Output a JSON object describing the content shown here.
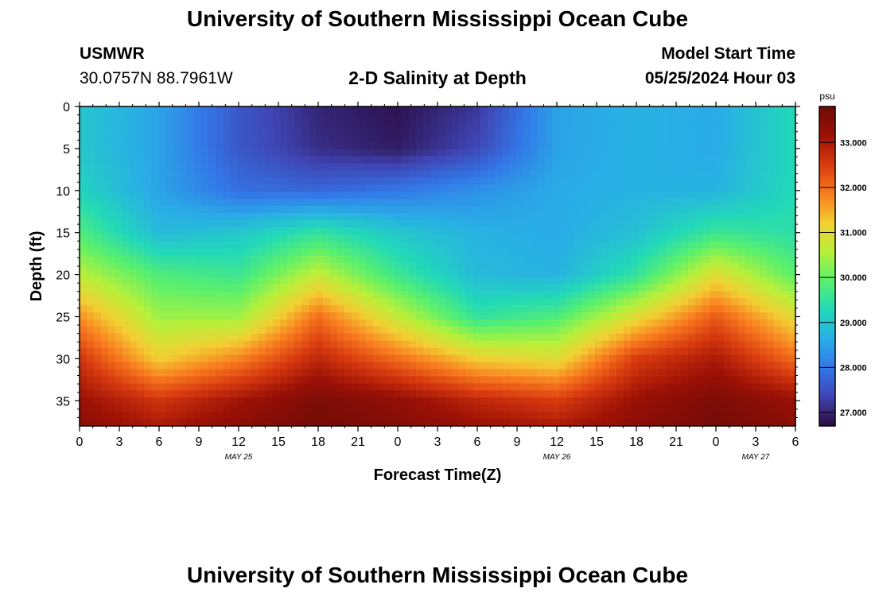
{
  "header": {
    "main_title": "University of Southern Mississippi Ocean Cube",
    "station": "USMWR",
    "coords": "30.0757N  88.7961W",
    "chart_title": "2-D Salinity at Depth",
    "model_start_label": "Model Start Time",
    "model_start_value": "05/25/2024 Hour 03",
    "footer_title": "University of Southern Mississippi Ocean Cube"
  },
  "chart_data": {
    "type": "heatmap",
    "title": "2-D Salinity at Depth",
    "xlabel": "Forecast Time(Z)",
    "ylabel": "Depth (ft)",
    "x_ticks": [
      "0",
      "3",
      "6",
      "9",
      "12",
      "15",
      "18",
      "21",
      "0",
      "3",
      "6",
      "9",
      "12",
      "15",
      "18",
      "21",
      "0",
      "3",
      "6"
    ],
    "date_labels": [
      {
        "label": "MAY 25",
        "at_tick": 4
      },
      {
        "label": "MAY 26",
        "at_tick": 12
      },
      {
        "label": "MAY 27",
        "at_tick": 17
      }
    ],
    "y_ticks": [
      0,
      5,
      10,
      15,
      20,
      25,
      30,
      35
    ],
    "ylim": [
      0,
      38
    ],
    "depth_inverted": true,
    "colorbar": {
      "unit": "psu",
      "min": 26.7,
      "max": 33.8,
      "tick_values": [
        27,
        28,
        29,
        30,
        31,
        32,
        33
      ],
      "tick_labels": [
        "27.000",
        "28.000",
        "29.000",
        "30.000",
        "31.000",
        "32.000",
        "33.000"
      ],
      "colors": [
        "#2a0a3f",
        "#3f44b2",
        "#3377e8",
        "#29aee6",
        "#22d9b8",
        "#5af06c",
        "#b8f03a",
        "#f3cf33",
        "#f97c1f",
        "#d83a0f",
        "#9c1106",
        "#6e0a08"
      ]
    },
    "grid_hours": [
      0,
      6,
      12,
      18,
      24,
      30,
      36,
      42,
      48,
      54
    ],
    "grid_depths": [
      0,
      5,
      10,
      15,
      20,
      25,
      30,
      35,
      38
    ],
    "salinity": [
      [
        29.0,
        28.5,
        27.6,
        27.0,
        26.8,
        27.2,
        28.5,
        28.7,
        28.6,
        29.3
      ],
      [
        29.0,
        28.5,
        27.6,
        27.1,
        26.9,
        27.4,
        28.5,
        28.7,
        28.6,
        29.3
      ],
      [
        29.2,
        28.5,
        27.9,
        27.8,
        28.0,
        28.3,
        28.6,
        28.7,
        28.7,
        29.3
      ],
      [
        29.8,
        28.8,
        29.0,
        29.5,
        29.0,
        28.7,
        28.6,
        28.9,
        29.6,
        29.4
      ],
      [
        30.6,
        29.8,
        29.6,
        30.7,
        29.6,
        28.8,
        28.7,
        29.5,
        31.0,
        29.9
      ],
      [
        31.7,
        30.4,
        30.4,
        32.0,
        30.7,
        29.5,
        29.8,
        31.0,
        32.2,
        31.0
      ],
      [
        32.6,
        31.2,
        31.8,
        32.8,
        32.0,
        31.2,
        31.0,
        32.5,
        33.0,
        32.0
      ],
      [
        33.2,
        32.6,
        33.1,
        33.6,
        33.3,
        32.8,
        32.5,
        33.2,
        33.6,
        33.2
      ],
      [
        33.4,
        33.0,
        33.4,
        33.7,
        33.5,
        33.2,
        33.0,
        33.4,
        33.7,
        33.4
      ]
    ]
  }
}
